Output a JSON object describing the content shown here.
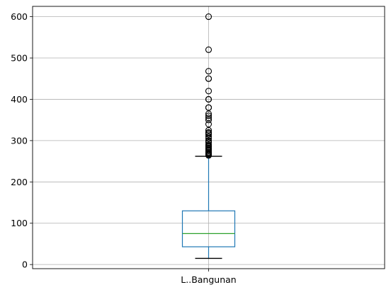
{
  "chart_data": {
    "type": "boxplot",
    "title": "",
    "xlabel": "",
    "ylabel": "",
    "grid": true,
    "categories": [
      "L..Bangunan"
    ],
    "ylim": [
      -10,
      625
    ],
    "yticks": [
      0,
      100,
      200,
      300,
      400,
      500,
      600
    ],
    "ytick_labels": [
      "0",
      "100",
      "200",
      "300",
      "400",
      "500",
      "600"
    ],
    "box": {
      "whisker_low": 15,
      "q1": 43,
      "median": 75,
      "q3": 130,
      "whisker_high": 262
    },
    "outliers": [
      600,
      520,
      468,
      450,
      450,
      420,
      400,
      400,
      400,
      380,
      380,
      365,
      360,
      355,
      350,
      340,
      325,
      320,
      318,
      315,
      310,
      305,
      300,
      298,
      295,
      290,
      288,
      285,
      282,
      280,
      278,
      275,
      272,
      270,
      268,
      266,
      264
    ],
    "colors": {
      "box": "#1f77b4",
      "median": "#2ca02c",
      "whisker": "#000000",
      "grid": "#b0b0b0"
    }
  }
}
